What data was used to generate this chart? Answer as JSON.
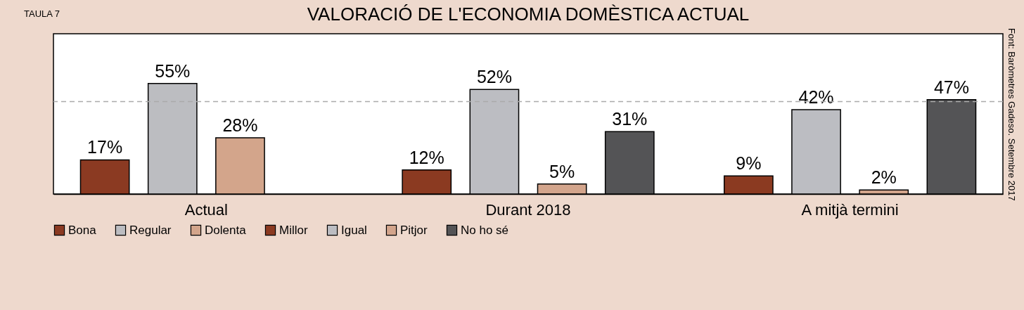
{
  "chart_data": {
    "type": "bar",
    "title": "VALORACIÓ DE L'ECONOMIA DOMÈSTICA ACTUAL",
    "categories": [
      "Actual",
      "Durant 2018",
      "A mitjà termini"
    ],
    "series": [
      {
        "name": "Bona",
        "color": "#8b3a22",
        "values": [
          17,
          null,
          null
        ],
        "value_labels": [
          "17%",
          null,
          null
        ]
      },
      {
        "name": "Regular",
        "color": "#bcbdc1",
        "values": [
          55,
          null,
          null
        ],
        "value_labels": [
          "55%",
          null,
          null
        ]
      },
      {
        "name": "Dolenta",
        "color": "#d3a58b",
        "values": [
          28,
          null,
          null
        ],
        "value_labels": [
          "28%",
          null,
          null
        ]
      },
      {
        "name": "Millor",
        "color": "#8b3a21",
        "values": [
          null,
          12,
          9
        ],
        "value_labels": [
          null,
          "12%",
          "9%"
        ]
      },
      {
        "name": "Igual",
        "color": "#bcbdc2",
        "values": [
          null,
          52,
          42
        ],
        "value_labels": [
          null,
          "52%",
          "42%"
        ]
      },
      {
        "name": "Pitjor",
        "color": "#d3a58c",
        "values": [
          null,
          5,
          2
        ],
        "value_labels": [
          null,
          "5%",
          "2%"
        ]
      },
      {
        "name": "No ho sé",
        "color": "#545456",
        "values": [
          null,
          31,
          47
        ],
        "value_labels": [
          null,
          "31%",
          "47%"
        ]
      }
    ],
    "ref_lines": [
      {
        "axis": "y",
        "value": 46,
        "color": "#aaaaaa",
        "line_style": "dashed"
      }
    ],
    "legend": "bottom",
    "grid": false,
    "annotations": [
      "TAULA 7",
      "Font: Baròmetres Gadeso. Setembre 2017"
    ]
  }
}
